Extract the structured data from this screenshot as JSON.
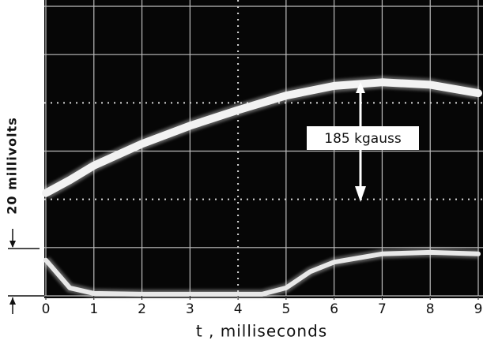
{
  "chart_data": {
    "type": "line",
    "x": [
      0,
      0.5,
      1,
      2,
      3,
      4,
      4.5,
      5,
      5.5,
      6,
      7,
      8,
      9
    ],
    "series": [
      {
        "color": "#f2f2f2",
        "values": [
          42.6,
          48,
          54,
          63,
          70.5,
          77,
          80,
          83,
          85,
          87,
          88.5,
          87.5,
          84
        ]
      },
      {
        "color": "#e8e8e8",
        "values": [
          14.8,
          3.3,
          1,
          0.7,
          0.7,
          0.7,
          0.7,
          3.3,
          10,
          14,
          17.4,
          18,
          17.4
        ]
      }
    ],
    "xlim": [
      0,
      9
    ],
    "xticks": [
      0,
      1,
      2,
      3,
      4,
      5,
      6,
      7,
      8,
      9
    ],
    "ylim": [
      0,
      120
    ],
    "xlabel": "t , milliseconds",
    "ylabel": "20 millivolts",
    "annotation": "185 kgauss"
  }
}
